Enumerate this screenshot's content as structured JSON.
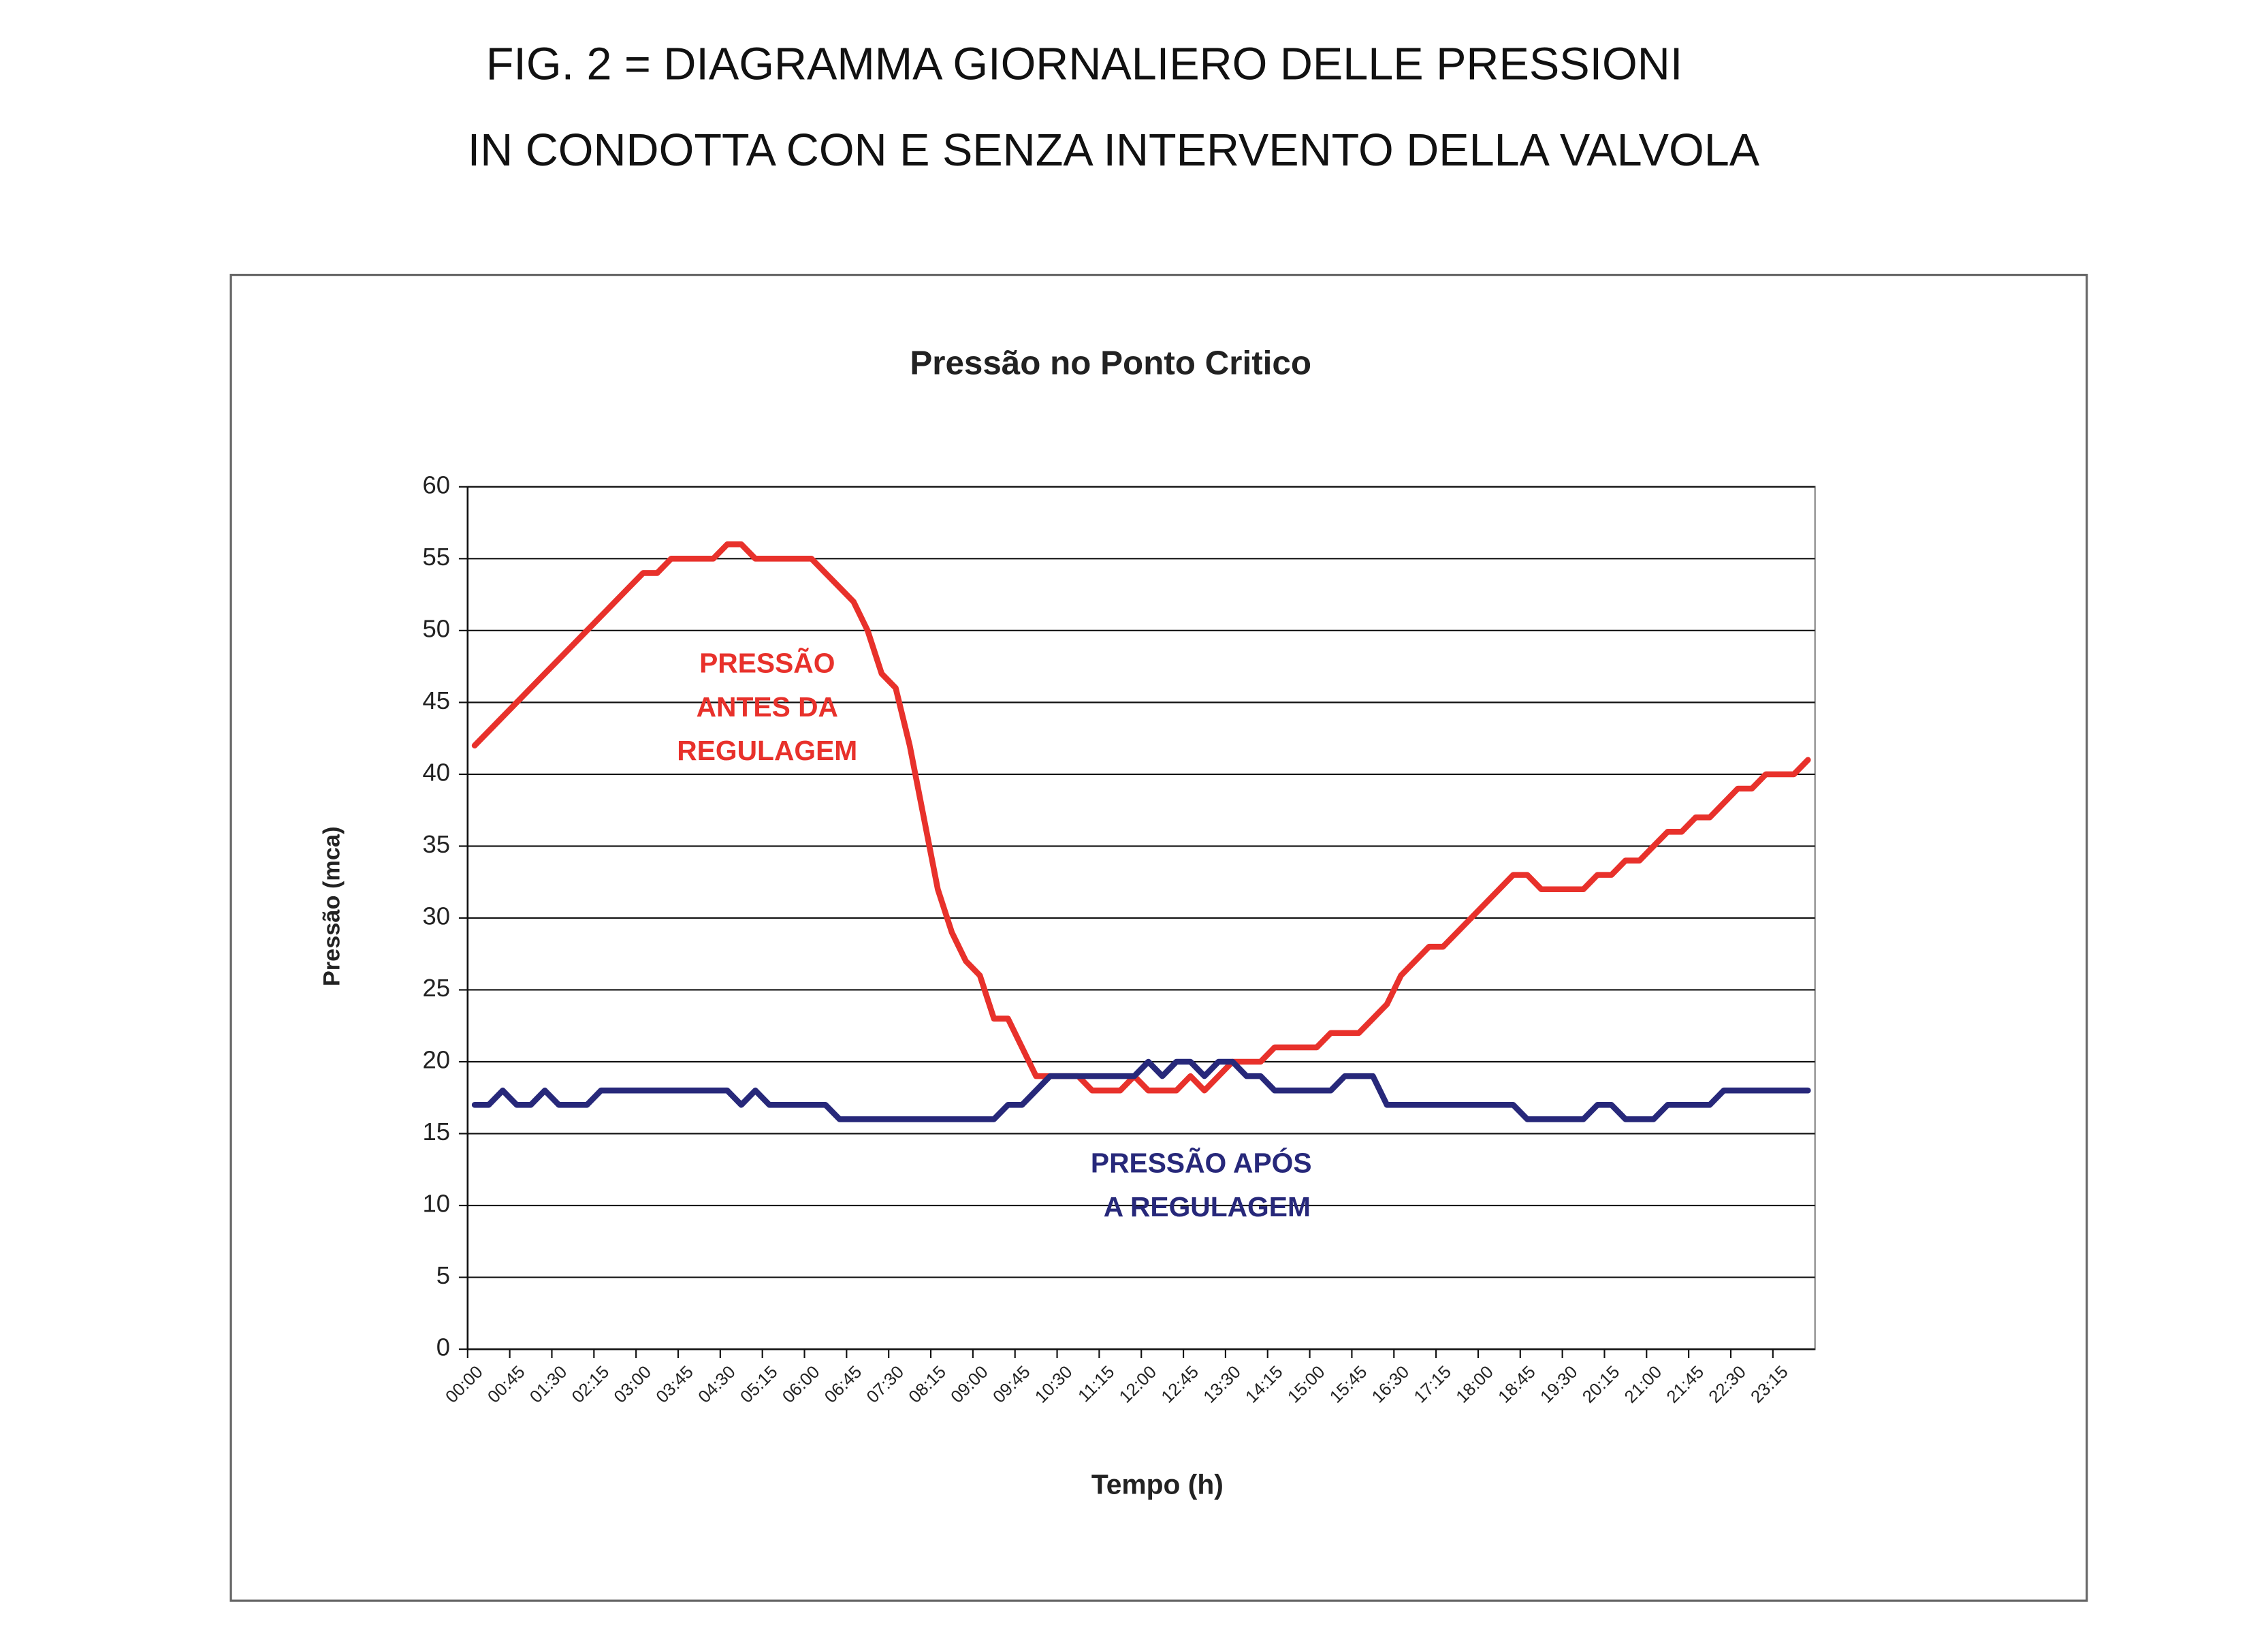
{
  "figure_caption": [
    "FIG. 2 = DIAGRAMMA GIORNALIERO DELLE PRESSIONI",
    "IN CONDOTTA CON E SENZA INTERVENTO DELLA VALVOLA"
  ],
  "chart_data": {
    "type": "line",
    "title": "Pressão no Ponto Critico",
    "x_label": "Tempo (h)",
    "y_label": "Pressão (mca)",
    "ylim": [
      0,
      60
    ],
    "yticks": [
      0,
      5,
      10,
      15,
      20,
      25,
      30,
      35,
      40,
      45,
      50,
      55,
      60
    ],
    "grid": true,
    "categories": [
      "00:00",
      null,
      null,
      "00:45",
      null,
      null,
      "01:30",
      null,
      null,
      "02:15",
      null,
      null,
      "03:00",
      null,
      null,
      "03:45",
      null,
      null,
      "04:30",
      null,
      null,
      "05:15",
      null,
      null,
      "06:00",
      null,
      null,
      "06:45",
      null,
      null,
      "07:30",
      null,
      null,
      "08:15",
      null,
      null,
      "09:00",
      null,
      null,
      "09:45",
      null,
      null,
      "10:30",
      null,
      null,
      "11:15",
      null,
      null,
      "12:00",
      null,
      null,
      "12:45",
      null,
      null,
      "13:30",
      null,
      null,
      "14:15",
      null,
      null,
      "15:00",
      null,
      null,
      "15:45",
      null,
      null,
      "16:30",
      null,
      null,
      "17:15",
      null,
      null,
      "18:00",
      null,
      null,
      "18:45",
      null,
      null,
      "19:30",
      null,
      null,
      "20:15",
      null,
      null,
      "21:00",
      null,
      null,
      "21:45",
      null,
      null,
      "22:30",
      null,
      null,
      "23:15",
      null,
      null
    ],
    "series": [
      {
        "color": "#e8312b",
        "values": [
          42,
          43,
          44,
          45,
          46,
          47,
          48,
          49,
          50,
          51,
          52,
          53,
          54,
          54,
          55,
          55,
          55,
          55,
          56,
          56,
          55,
          55,
          55,
          55,
          55,
          54,
          53,
          52,
          50,
          47,
          46,
          42,
          37,
          32,
          29,
          27,
          26,
          23,
          23,
          21,
          19,
          19,
          19,
          19,
          18,
          18,
          18,
          19,
          18,
          18,
          18,
          19,
          18,
          19,
          20,
          20,
          20,
          21,
          21,
          21,
          21,
          22,
          22,
          22,
          23,
          24,
          26,
          27,
          28,
          28,
          29,
          30,
          31,
          32,
          33,
          33,
          32,
          32,
          32,
          32,
          33,
          33,
          34,
          34,
          35,
          36,
          36,
          37,
          37,
          38,
          39,
          39,
          40,
          40,
          40,
          41
        ]
      },
      {
        "color": "#27287a",
        "values": [
          17,
          17,
          18,
          17,
          17,
          18,
          17,
          17,
          17,
          18,
          18,
          18,
          18,
          18,
          18,
          18,
          18,
          18,
          18,
          17,
          18,
          17,
          17,
          17,
          17,
          17,
          16,
          16,
          16,
          16,
          16,
          16,
          16,
          16,
          16,
          16,
          16,
          16,
          17,
          17,
          18,
          19,
          19,
          19,
          19,
          19,
          19,
          19,
          20,
          19,
          20,
          20,
          19,
          20,
          20,
          19,
          19,
          18,
          18,
          18,
          18,
          18,
          19,
          19,
          19,
          17,
          17,
          17,
          17,
          17,
          17,
          17,
          17,
          17,
          17,
          16,
          16,
          16,
          16,
          16,
          17,
          17,
          16,
          16,
          16,
          17,
          17,
          17,
          17,
          18,
          18,
          18,
          18,
          18,
          18,
          18
        ]
      }
    ],
    "annotations": [
      {
        "lines": [
          "PRESSÃO",
          "ANTES DA",
          "REGULAGEM"
        ],
        "color": "#e8312b"
      },
      {
        "lines": [
          "PRESSÃO APÓS",
          "A REGULAGEM"
        ],
        "color": "#27287a"
      }
    ]
  }
}
